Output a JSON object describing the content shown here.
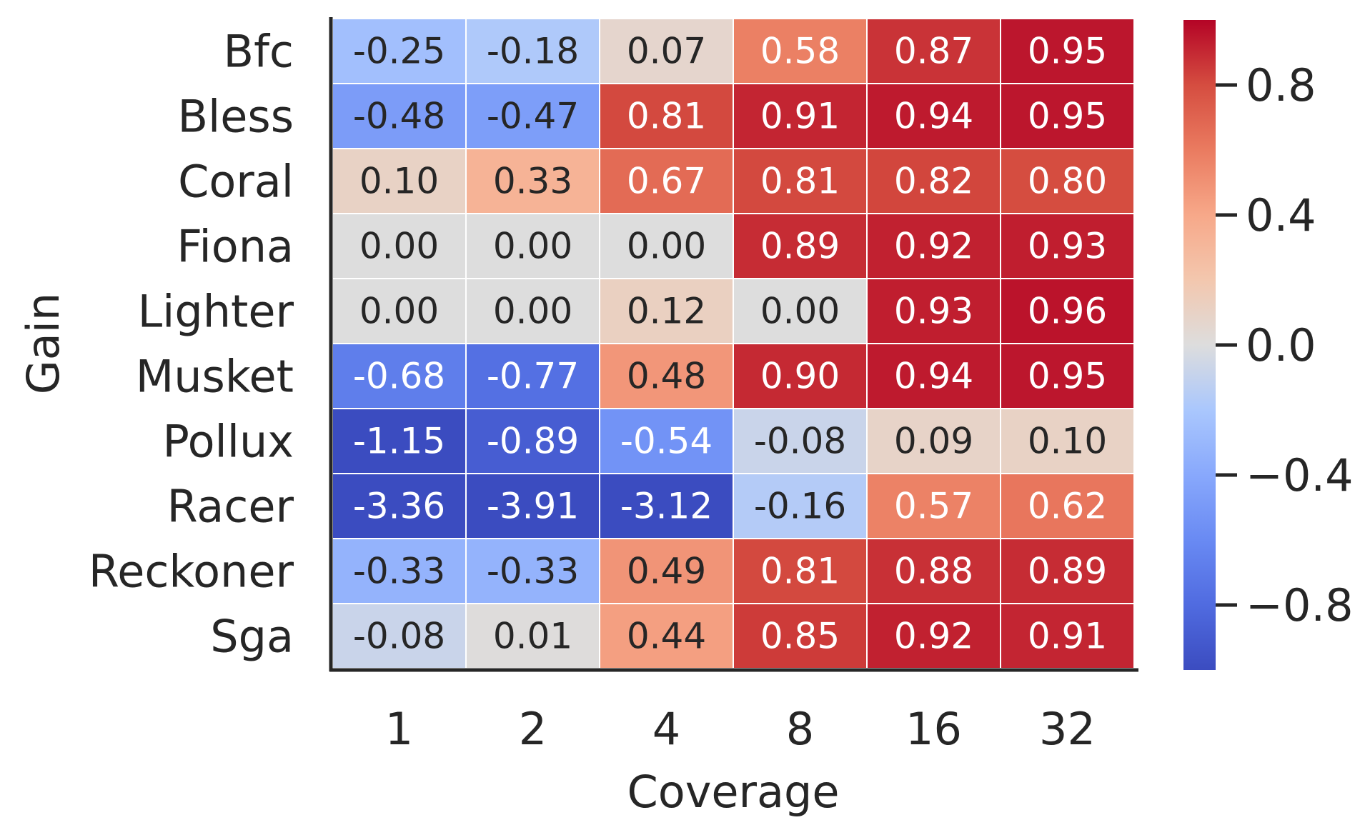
{
  "chart_data": {
    "type": "heatmap",
    "xlabel": "Coverage",
    "ylabel": "Gain",
    "x_categories": [
      "1",
      "2",
      "4",
      "8",
      "16",
      "32"
    ],
    "y_categories": [
      "Bfc",
      "Bless",
      "Coral",
      "Fiona",
      "Lighter",
      "Musket",
      "Pollux",
      "Racer",
      "Reckoner",
      "Sga"
    ],
    "values": [
      [
        -0.25,
        -0.18,
        0.07,
        0.58,
        0.87,
        0.95
      ],
      [
        -0.48,
        -0.47,
        0.81,
        0.91,
        0.94,
        0.95
      ],
      [
        0.1,
        0.33,
        0.67,
        0.81,
        0.82,
        0.8
      ],
      [
        0.0,
        0.0,
        0.0,
        0.89,
        0.92,
        0.93
      ],
      [
        0.0,
        0.0,
        0.12,
        0.0,
        0.93,
        0.96
      ],
      [
        -0.68,
        -0.77,
        0.48,
        0.9,
        0.94,
        0.95
      ],
      [
        -1.15,
        -0.89,
        -0.54,
        -0.08,
        0.09,
        0.1
      ],
      [
        -3.36,
        -3.91,
        -3.12,
        -0.16,
        0.57,
        0.62
      ],
      [
        -0.33,
        -0.33,
        0.49,
        0.81,
        0.88,
        0.89
      ],
      [
        -0.08,
        0.01,
        0.44,
        0.85,
        0.92,
        0.91
      ]
    ],
    "cell_labels": [
      [
        "-0.25",
        "-0.18",
        "0.07",
        "0.58",
        "0.87",
        "0.95"
      ],
      [
        "-0.48",
        "-0.47",
        "0.81",
        "0.91",
        "0.94",
        "0.95"
      ],
      [
        "0.10",
        "0.33",
        "0.67",
        "0.81",
        "0.82",
        "0.80"
      ],
      [
        "0.00",
        "0.00",
        "0.00",
        "0.89",
        "0.92",
        "0.93"
      ],
      [
        "0.00",
        "0.00",
        "0.12",
        "0.00",
        "0.93",
        "0.96"
      ],
      [
        "-0.68",
        "-0.77",
        "0.48",
        "0.90",
        "0.94",
        "0.95"
      ],
      [
        "-1.15",
        "-0.89",
        "-0.54",
        "-0.08",
        "0.09",
        "0.10"
      ],
      [
        "-3.36",
        "-3.91",
        "-3.12",
        "-0.16",
        "0.57",
        "0.62"
      ],
      [
        "-0.33",
        "-0.33",
        "0.49",
        "0.81",
        "0.88",
        "0.89"
      ],
      [
        "-0.08",
        "0.01",
        "0.44",
        "0.85",
        "0.92",
        "0.91"
      ]
    ],
    "colormap": "coolwarm",
    "vmin": -1.0,
    "vmax": 1.0,
    "colorbar_ticks": [
      0.8,
      0.4,
      0.0,
      -0.4,
      -0.8
    ],
    "colorbar_tick_labels": [
      "0.8",
      "0.4",
      "0.0",
      "−0.4",
      "−0.8"
    ],
    "colors": {
      "low": "#3b4cc0",
      "mid": "#dddddd",
      "high": "#b40426",
      "text_dark": "#262626",
      "text_light": "#ffffff"
    }
  }
}
